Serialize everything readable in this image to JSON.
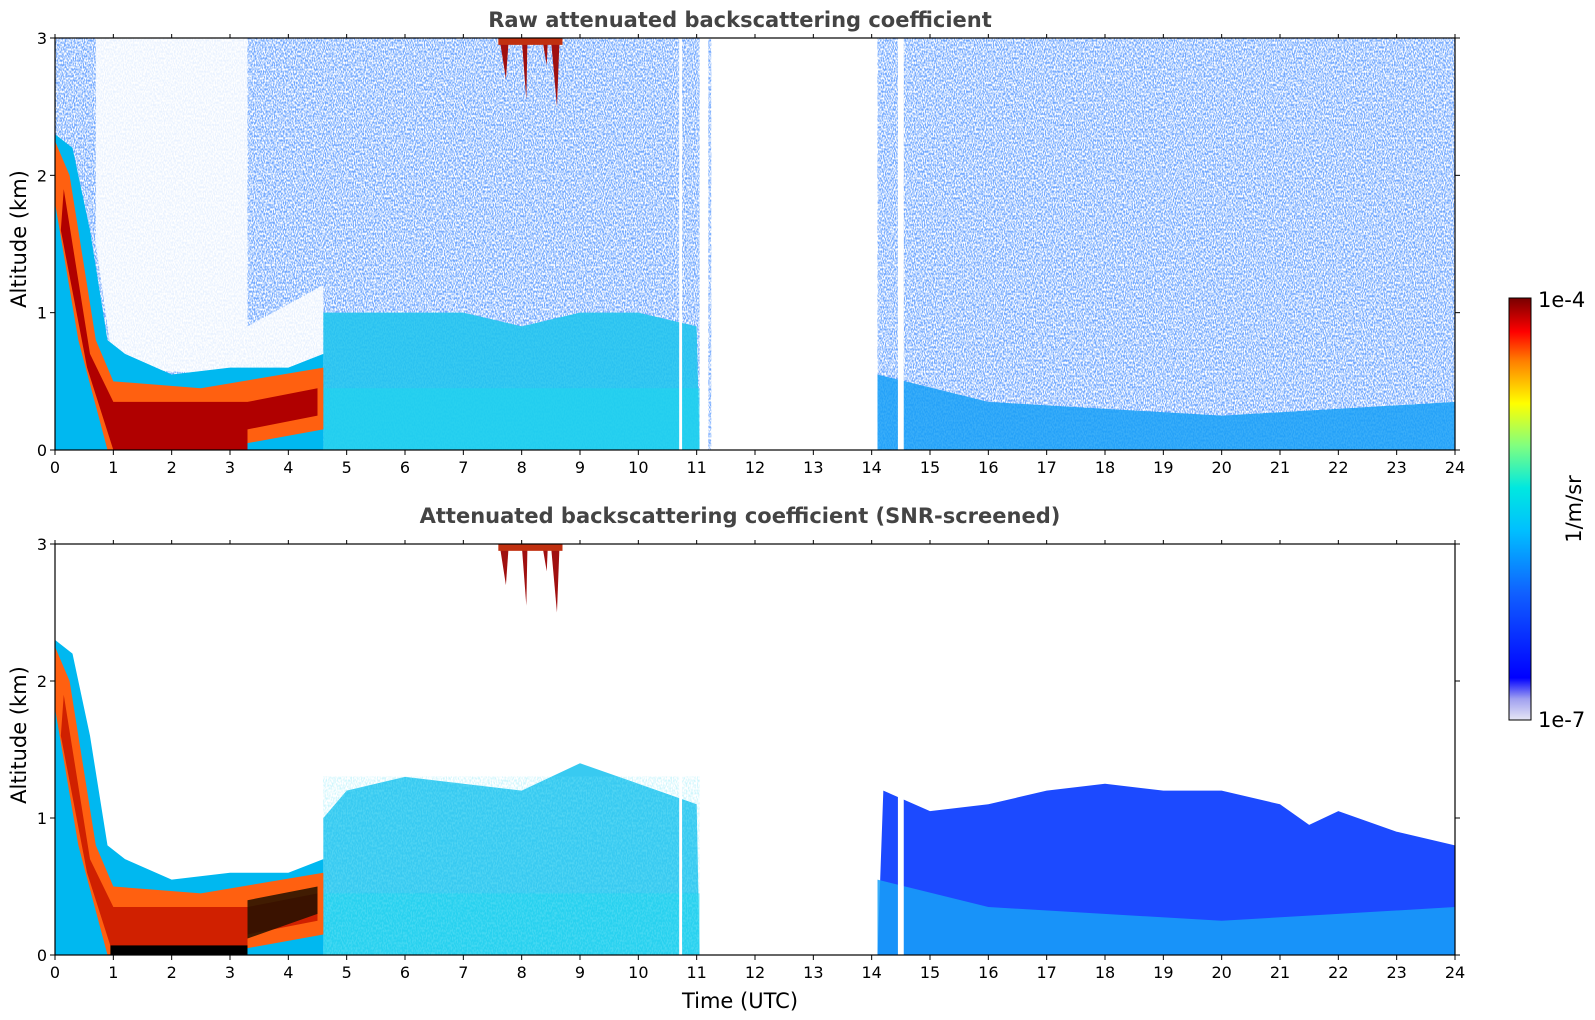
{
  "chart_data": [
    {
      "type": "heatmap",
      "title": "Raw attenuated backscattering coefficient",
      "xlabel": "",
      "ylabel": "Altitude (km)",
      "xlim": [
        0,
        24
      ],
      "ylim": [
        0,
        3
      ],
      "x_ticks": [
        "0",
        "1",
        "2",
        "3",
        "4",
        "5",
        "6",
        "7",
        "8",
        "9",
        "10",
        "11",
        "12",
        "13",
        "14",
        "15",
        "16",
        "17",
        "18",
        "19",
        "20",
        "21",
        "22",
        "23",
        "24"
      ],
      "y_ticks": [
        "0",
        "1",
        "2",
        "3"
      ],
      "no_data_intervals": [
        [
          10.7,
          10.75
        ],
        [
          11.05,
          11.2
        ],
        [
          11.25,
          14.1
        ],
        [
          14.45,
          14.55
        ]
      ],
      "features": [
        {
          "name": "boundary layer aerosol",
          "x_range": [
            4.6,
            24
          ],
          "top_altitude": [
            1.0,
            0.5
          ]
        },
        {
          "name": "low cloud",
          "x_range": [
            0,
            4.6
          ],
          "top_altitude": [
            2.2,
            0.4
          ]
        },
        {
          "name": "high cloud",
          "x_range": [
            7.6,
            8.7
          ],
          "bottom_altitude": 2.5
        }
      ]
    },
    {
      "type": "heatmap",
      "title": "Attenuated backscattering coefficient (SNR-screened)",
      "xlabel": "Time (UTC)",
      "ylabel": "Altitude (km)",
      "xlim": [
        0,
        24
      ],
      "ylim": [
        0,
        3
      ],
      "x_ticks": [
        "0",
        "1",
        "2",
        "3",
        "4",
        "5",
        "6",
        "7",
        "8",
        "9",
        "10",
        "11",
        "12",
        "13",
        "14",
        "15",
        "16",
        "17",
        "18",
        "19",
        "20",
        "21",
        "22",
        "23",
        "24"
      ],
      "y_ticks": [
        "0",
        "1",
        "2",
        "3"
      ],
      "no_data_intervals": [
        [
          10.7,
          10.75
        ],
        [
          11.05,
          11.2
        ],
        [
          11.25,
          14.1
        ],
        [
          14.45,
          14.55
        ]
      ],
      "boundary_layer_top_km": {
        "x": [
          4.6,
          5,
          6,
          7,
          8,
          9,
          10,
          11,
          14.2,
          15,
          16,
          17,
          18,
          19,
          20,
          21,
          21.5,
          22,
          23,
          24
        ],
        "y": [
          1.0,
          1.2,
          1.3,
          1.25,
          1.2,
          1.4,
          1.25,
          1.1,
          1.2,
          1.05,
          1.1,
          1.2,
          1.25,
          1.2,
          1.2,
          1.1,
          0.95,
          1.05,
          0.9,
          0.8
        ]
      },
      "cloud_top_km": {
        "x": [
          0,
          0.3,
          0.6,
          0.9,
          1.2,
          2,
          3,
          4,
          4.6
        ],
        "y": [
          2.3,
          2.2,
          1.6,
          0.8,
          0.7,
          0.55,
          0.6,
          0.6,
          0.7
        ]
      }
    }
  ],
  "colorbar": {
    "label": "1/m/sr",
    "min_label": "1e-7",
    "max_label": "1e-4",
    "scale": "log",
    "colormap": [
      "#e6e6f5",
      "#a0a0f0",
      "#0000ff",
      "#1060ff",
      "#00c0ff",
      "#00e8e0",
      "#80ff80",
      "#ffff00",
      "#ff8000",
      "#ff0000",
      "#a00000",
      "#780000"
    ]
  }
}
